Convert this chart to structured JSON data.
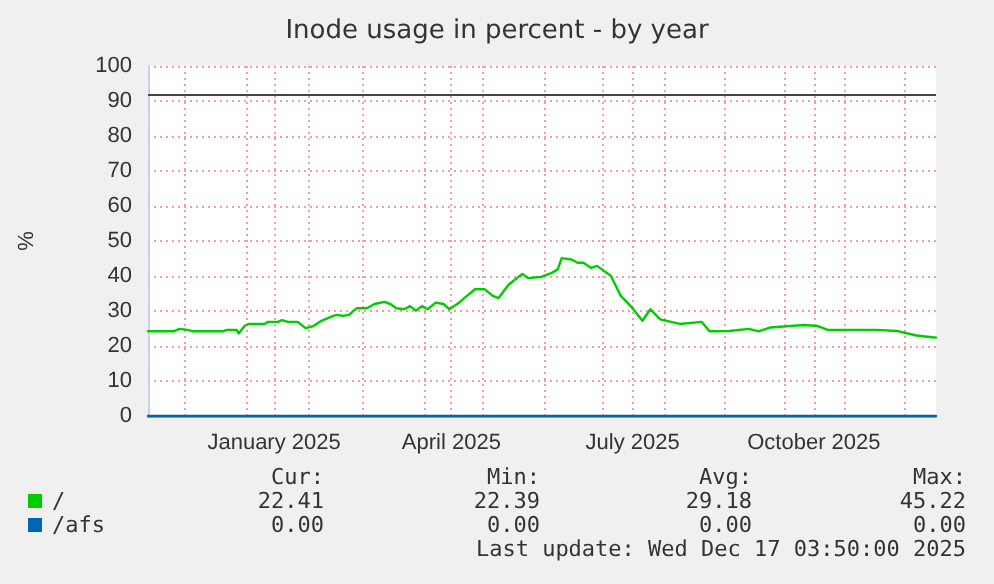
{
  "chart_data": {
    "type": "line",
    "title": "Inode usage in percent - by year",
    "ylabel": "%",
    "xlim": [
      "2024-11-12",
      "2025-12-17"
    ],
    "xticks": [
      {
        "value": "2024-12-01",
        "label": null
      },
      {
        "value": "2025-01-01",
        "label": null
      },
      {
        "value": "2025-01-15",
        "label": "January 2025"
      },
      {
        "value": "2025-02-01",
        "label": null
      },
      {
        "value": "2025-03-01",
        "label": null
      },
      {
        "value": "2025-04-01",
        "label": null
      },
      {
        "value": "2025-04-15",
        "label": "April 2025"
      },
      {
        "value": "2025-05-01",
        "label": null
      },
      {
        "value": "2025-06-01",
        "label": null
      },
      {
        "value": "2025-07-01",
        "label": null
      },
      {
        "value": "2025-07-16",
        "label": "July 2025"
      },
      {
        "value": "2025-08-01",
        "label": null
      },
      {
        "value": "2025-09-01",
        "label": null
      },
      {
        "value": "2025-10-01",
        "label": null
      },
      {
        "value": "2025-10-16",
        "label": "October 2025"
      },
      {
        "value": "2025-11-01",
        "label": null
      },
      {
        "value": "2025-12-01",
        "label": null
      }
    ],
    "ylim": [
      0,
      100
    ],
    "yticks": [
      0,
      10,
      20,
      30,
      40,
      50,
      60,
      70,
      80,
      90,
      100
    ],
    "grid": true,
    "legend": "bottom left",
    "marker": "none",
    "line_style": "solid",
    "ref_lines": [
      {
        "axis": "y",
        "value": 92,
        "label": null,
        "color": "#444444"
      }
    ],
    "series": [
      {
        "name": "/",
        "color": "#00cc00",
        "x": [
          "2024-11-12",
          "2024-11-25",
          "2024-11-28",
          "2024-12-02",
          "2024-12-05",
          "2024-12-20",
          "2024-12-22",
          "2024-12-27",
          "2024-12-28",
          "2024-12-31",
          "2025-01-02",
          "2025-01-10",
          "2025-01-12",
          "2025-01-17",
          "2025-01-19",
          "2025-01-22",
          "2025-01-27",
          "2025-01-31",
          "2025-02-04",
          "2025-02-08",
          "2025-02-14",
          "2025-02-16",
          "2025-02-19",
          "2025-02-22",
          "2025-02-26",
          "2025-03-03",
          "2025-03-07",
          "2025-03-12",
          "2025-03-15",
          "2025-03-18",
          "2025-03-22",
          "2025-03-25",
          "2025-03-28",
          "2025-03-31",
          "2025-04-03",
          "2025-04-07",
          "2025-04-11",
          "2025-04-14",
          "2025-04-19",
          "2025-04-22",
          "2025-04-27",
          "2025-05-02",
          "2025-05-06",
          "2025-05-09",
          "2025-05-14",
          "2025-05-21",
          "2025-05-24",
          "2025-05-31",
          "2025-06-05",
          "2025-06-08",
          "2025-06-10",
          "2025-06-15",
          "2025-06-18",
          "2025-06-21",
          "2025-06-25",
          "2025-06-28",
          "2025-07-05",
          "2025-07-10",
          "2025-07-15",
          "2025-07-21",
          "2025-07-25",
          "2025-07-30",
          "2025-08-09",
          "2025-08-20",
          "2025-08-24",
          "2025-09-03",
          "2025-09-13",
          "2025-09-18",
          "2025-09-24",
          "2025-10-04",
          "2025-10-11",
          "2025-10-18",
          "2025-10-23",
          "2025-11-10",
          "2025-11-17",
          "2025-11-27",
          "2025-12-07",
          "2025-12-15",
          "2025-12-17"
        ],
        "values": [
          24.2,
          24.2,
          24.9,
          24.6,
          24.2,
          24.2,
          24.6,
          24.6,
          23.6,
          25.7,
          26.3,
          26.3,
          26.9,
          26.9,
          27.4,
          26.9,
          26.9,
          25.1,
          25.7,
          27.2,
          28.6,
          28.9,
          28.6,
          28.9,
          30.8,
          30.8,
          32,
          32.6,
          32,
          30.8,
          30.5,
          31.4,
          30.1,
          31.4,
          30.5,
          32.4,
          32,
          30.5,
          32.4,
          33.9,
          36.2,
          36.2,
          34.3,
          33.7,
          37.5,
          40.6,
          39.4,
          39.8,
          40.9,
          41.9,
          45.1,
          44.7,
          43.8,
          43.8,
          42.3,
          42.9,
          40,
          34.3,
          31.4,
          27.2,
          30.5,
          27.6,
          26.3,
          26.9,
          24.2,
          24.3,
          24.9,
          24.2,
          25.3,
          25.7,
          26,
          25.7,
          24.6,
          24.6,
          24.6,
          24.3,
          23,
          22.5,
          22.4
        ]
      },
      {
        "name": "/afs",
        "color": "#0066b3",
        "x": [
          "2024-11-12",
          "2025-12-17"
        ],
        "values": [
          0,
          0
        ]
      }
    ],
    "annotations": [
      "Cur:",
      "Min:",
      "Avg:",
      "Max:",
      "22.41",
      "22.39",
      "29.18",
      "45.22",
      "0.00",
      "0.00",
      "0.00",
      "0.00",
      "Last update: Wed Dec 17 03:50:00 2025"
    ]
  }
}
